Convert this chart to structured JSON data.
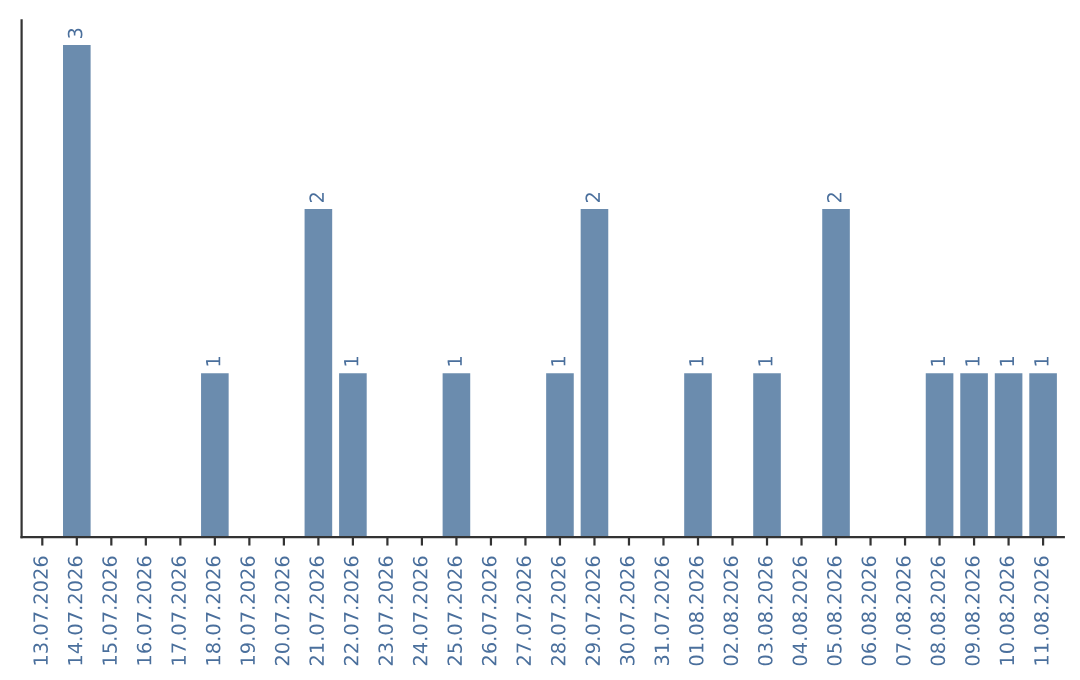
{
  "chart_data": {
    "type": "bar",
    "categories": [
      "13.07.2026",
      "14.07.2026",
      "15.07.2026",
      "16.07.2026",
      "17.07.2026",
      "18.07.2026",
      "19.07.2026",
      "20.07.2026",
      "21.07.2026",
      "22.07.2026",
      "23.07.2026",
      "24.07.2026",
      "25.07.2026",
      "26.07.2026",
      "27.07.2026",
      "28.07.2026",
      "29.07.2026",
      "30.07.2026",
      "31.07.2026",
      "01.08.2026",
      "02.08.2026",
      "03.08.2026",
      "04.08.2026",
      "05.08.2026",
      "06.08.2026",
      "07.08.2026",
      "08.08.2026",
      "09.08.2026",
      "10.08.2026",
      "11.08.2026"
    ],
    "values": [
      0,
      3,
      0,
      0,
      0,
      1,
      0,
      0,
      2,
      1,
      0,
      0,
      1,
      0,
      0,
      1,
      2,
      0,
      0,
      1,
      0,
      1,
      0,
      2,
      0,
      0,
      1,
      1,
      1,
      1
    ],
    "value_labels": [
      null,
      "3",
      null,
      null,
      null,
      "1",
      null,
      null,
      "2",
      "1",
      null,
      null,
      "1",
      null,
      null,
      "1",
      "2",
      null,
      null,
      "1",
      null,
      "1",
      null,
      "2",
      null,
      null,
      "1",
      "1",
      "1",
      "1"
    ],
    "color": "#6b8cae",
    "tick_labels": "x",
    "grid": false,
    "legend": false
  }
}
